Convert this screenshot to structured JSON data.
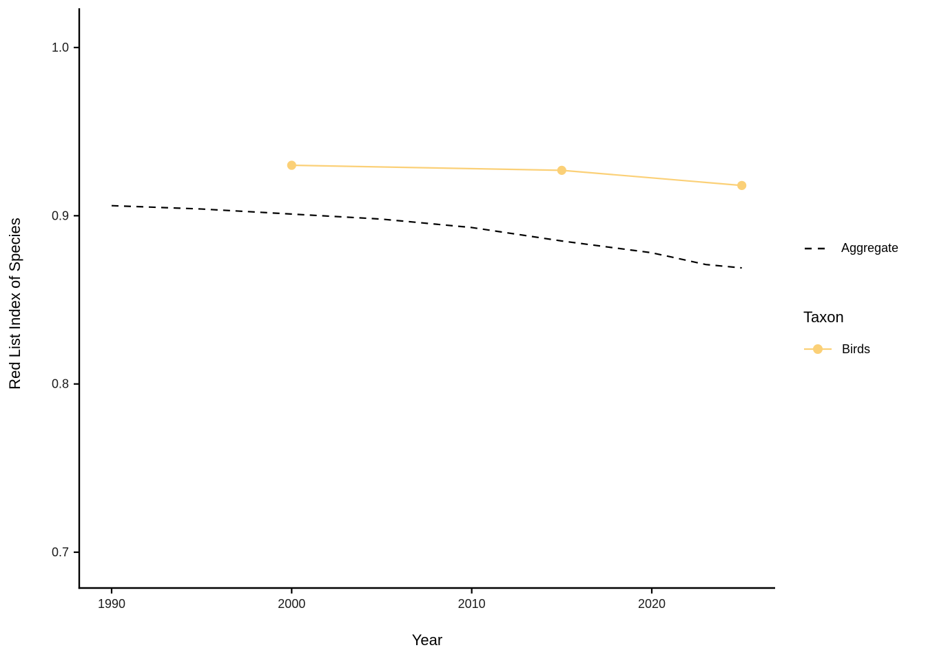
{
  "axes": {
    "x_title": "Year",
    "y_title": "Red List Index of Species"
  },
  "legend": {
    "aggregate_label": "Aggregate",
    "taxon_title": "Taxon",
    "birds_label": "Birds"
  },
  "chart_data": {
    "type": "line",
    "title": "",
    "xlabel": "Year",
    "ylabel": "Red List Index of Species",
    "x_ticks": [
      "1990",
      "2000",
      "2010",
      "2020"
    ],
    "y_ticks": [
      "1.0",
      "0.9",
      "0.8",
      "0.7"
    ],
    "xlim": [
      1988,
      2027
    ],
    "ylim": [
      0.678,
      1.023
    ],
    "grid": false,
    "legend_position": "right",
    "legend_taxon_title": "Taxon",
    "axis_color": "#000000",
    "series": [
      {
        "name": "Aggregate",
        "style": "dashed",
        "color": "#000000",
        "show_points": false,
        "x": [
          1990,
          1995,
          2000,
          2005,
          2010,
          2015,
          2020,
          2023,
          2025
        ],
        "y": [
          0.906,
          0.904,
          0.901,
          0.898,
          0.893,
          0.885,
          0.878,
          0.871,
          0.869
        ]
      },
      {
        "name": "Birds",
        "style": "solid",
        "color": "#FBD077",
        "show_points": true,
        "x": [
          2000,
          2015,
          2025
        ],
        "y": [
          0.93,
          0.927,
          0.918
        ]
      }
    ]
  }
}
